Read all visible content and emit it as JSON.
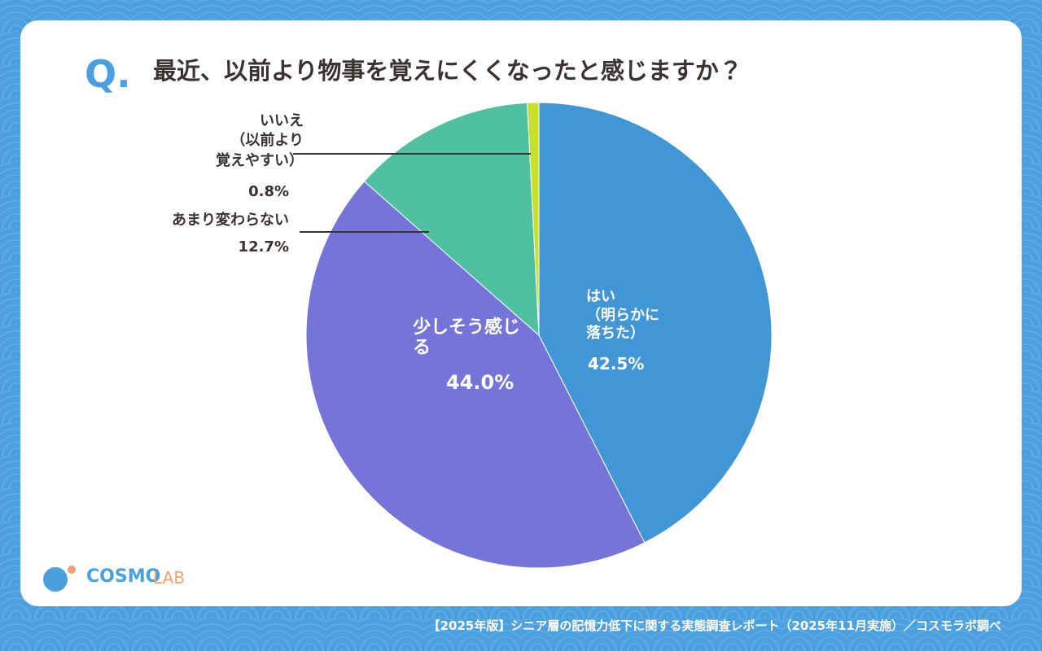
{
  "chart_data": {
    "type": "pie",
    "title": "最近、以前より物事を覚えにくくなったと感じますか？",
    "categories": [
      "はい\n（明らかに\n落ちた）",
      "少しそう感じ\nる",
      "あまり変わらない",
      "いいえ\n（以前より\n覚えやすい）"
    ],
    "values": [
      42.5,
      44.0,
      12.7,
      0.8
    ],
    "value_labels": [
      "42.5%",
      "44.0%",
      "12.7%",
      "0.8%"
    ],
    "colors": [
      "#4196d5",
      "#7574d8",
      "#4fc1a0",
      "#c9df2a"
    ]
  },
  "page": {
    "q_mark": "Q.",
    "logo_main": "COSMO",
    "logo_sub": "LAB",
    "footer": "【2025年版】シニア層の記憶力低下に関する実態調査レポート（2025年11月実施）／コスモラボ調べ"
  }
}
